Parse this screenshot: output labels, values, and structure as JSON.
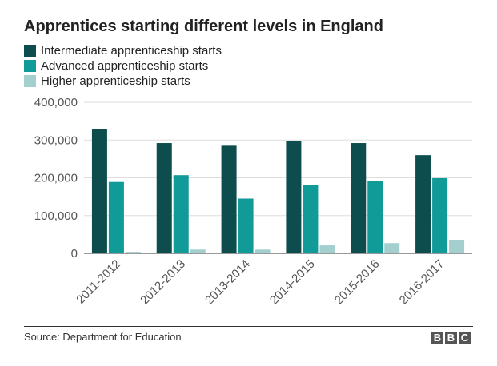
{
  "title": "Apprentices starting different levels in England",
  "source": "Source: Department for Education",
  "logo": [
    "B",
    "B",
    "C"
  ],
  "chart_data": {
    "type": "bar",
    "title": "Apprentices starting different levels in England",
    "categories": [
      "2011-2012",
      "2012-2013",
      "2013-2014",
      "2014-2015",
      "2015-2016",
      "2016-2017"
    ],
    "series": [
      {
        "name": "Intermediate apprenticeship starts",
        "color": "#0d4d4d",
        "values": [
          328000,
          292000,
          285000,
          298000,
          292000,
          260000
        ]
      },
      {
        "name": "Advanced apprenticeship starts",
        "color": "#119b98",
        "values": [
          189000,
          207000,
          145000,
          182000,
          191000,
          199000
        ]
      },
      {
        "name": "Higher apprenticeship starts",
        "color": "#a4cfcf",
        "values": [
          4000,
          10000,
          10000,
          21000,
          27000,
          36000
        ]
      }
    ],
    "y_ticks": [
      "0",
      "100,000",
      "200,000",
      "300,000",
      "400,000"
    ],
    "ylim": [
      0,
      400000
    ],
    "grid": true,
    "legend_position": "top-left"
  }
}
